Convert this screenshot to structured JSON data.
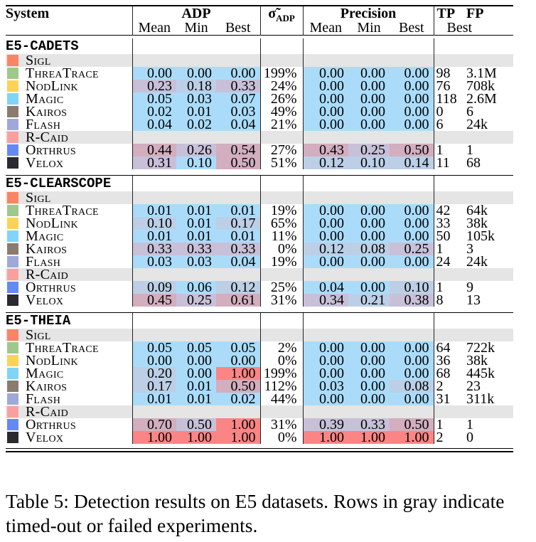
{
  "header": {
    "system": "System",
    "adp": "ADP",
    "sigma": "σ̃",
    "sigma_sub": "ADP",
    "precision": "Precision",
    "tp": "TP",
    "fp": "FP",
    "sub": [
      "Mean",
      "Min",
      "Best"
    ],
    "best": "Best"
  },
  "colors": {
    "gray_row": "#e5e5e5",
    "low": "#aadcfa",
    "midlow": "#bccfe6",
    "mid": "#c8c0d8",
    "midhigh": "#d2aebe",
    "high": "#fb8585"
  },
  "systems": [
    {
      "name": "Sigl",
      "color": "#fb8464"
    },
    {
      "name": "ThreaTrace",
      "color": "#a0c88c"
    },
    {
      "name": "NodLink",
      "color": "#fcd258"
    },
    {
      "name": "Magic",
      "color": "#80d4f8"
    },
    {
      "name": "Kairos",
      "color": "#8a7a70"
    },
    {
      "name": "Flash",
      "color": "#a0a8d8"
    },
    {
      "name": "R-Caid",
      "color": "#f8a0a0"
    },
    {
      "name": "Orthrus",
      "color": "#6488f4"
    },
    {
      "name": "Velox",
      "color": "#2a2a30"
    }
  ],
  "sections": [
    {
      "name": "E5-CADETS",
      "rows": [
        {
          "sys": 0,
          "gray": true
        },
        {
          "sys": 1,
          "adp": [
            "0.00",
            "0.00",
            "0.00"
          ],
          "adp_c": [
            "low",
            "low",
            "low"
          ],
          "sigma": "199%",
          "prec": [
            "0.00",
            "0.00",
            "0.00"
          ],
          "prec_c": [
            "low",
            "low",
            "low"
          ],
          "tp": "98",
          "fp": "3.1M"
        },
        {
          "sys": 2,
          "adp": [
            "0.23",
            "0.18",
            "0.33"
          ],
          "adp_c": [
            "mid",
            "midlow",
            "mid"
          ],
          "sigma": "24%",
          "prec": [
            "0.00",
            "0.00",
            "0.00"
          ],
          "prec_c": [
            "low",
            "low",
            "low"
          ],
          "tp": "76",
          "fp": "708k"
        },
        {
          "sys": 3,
          "adp": [
            "0.05",
            "0.03",
            "0.07"
          ],
          "adp_c": [
            "low",
            "low",
            "low"
          ],
          "sigma": "26%",
          "prec": [
            "0.00",
            "0.00",
            "0.00"
          ],
          "prec_c": [
            "low",
            "low",
            "low"
          ],
          "tp": "118",
          "fp": "2.6M"
        },
        {
          "sys": 4,
          "adp": [
            "0.02",
            "0.01",
            "0.03"
          ],
          "adp_c": [
            "low",
            "low",
            "low"
          ],
          "sigma": "49%",
          "prec": [
            "0.00",
            "0.00",
            "0.00"
          ],
          "prec_c": [
            "low",
            "low",
            "low"
          ],
          "tp": "0",
          "fp": "6"
        },
        {
          "sys": 5,
          "adp": [
            "0.04",
            "0.02",
            "0.04"
          ],
          "adp_c": [
            "low",
            "low",
            "low"
          ],
          "sigma": "21%",
          "prec": [
            "0.00",
            "0.00",
            "0.00"
          ],
          "prec_c": [
            "low",
            "low",
            "low"
          ],
          "tp": "6",
          "fp": "24k"
        },
        {
          "sys": 6,
          "gray": true
        },
        {
          "sys": 7,
          "adp": [
            "0.44",
            "0.26",
            "0.54"
          ],
          "adp_c": [
            "midhigh",
            "mid",
            "midhigh"
          ],
          "sigma": "27%",
          "prec": [
            "0.43",
            "0.25",
            "0.50"
          ],
          "prec_c": [
            "midhigh",
            "mid",
            "midhigh"
          ],
          "tp": "1",
          "fp": "1"
        },
        {
          "sys": 8,
          "adp": [
            "0.31",
            "0.10",
            "0.50"
          ],
          "adp_c": [
            "mid",
            "low",
            "midhigh"
          ],
          "sigma": "51%",
          "prec": [
            "0.12",
            "0.10",
            "0.14"
          ],
          "prec_c": [
            "midlow",
            "midlow",
            "midlow"
          ],
          "tp": "11",
          "fp": "68"
        }
      ]
    },
    {
      "name": "E5-CLEARSCOPE",
      "rows": [
        {
          "sys": 0,
          "gray": true
        },
        {
          "sys": 1,
          "adp": [
            "0.01",
            "0.01",
            "0.01"
          ],
          "adp_c": [
            "low",
            "low",
            "low"
          ],
          "sigma": "19%",
          "prec": [
            "0.00",
            "0.00",
            "0.00"
          ],
          "prec_c": [
            "low",
            "low",
            "low"
          ],
          "tp": "42",
          "fp": "64k"
        },
        {
          "sys": 2,
          "adp": [
            "0.10",
            "0.01",
            "0.17"
          ],
          "adp_c": [
            "midlow",
            "low",
            "midlow"
          ],
          "sigma": "65%",
          "prec": [
            "0.00",
            "0.00",
            "0.00"
          ],
          "prec_c": [
            "low",
            "low",
            "low"
          ],
          "tp": "33",
          "fp": "38k"
        },
        {
          "sys": 3,
          "adp": [
            "0.01",
            "0.01",
            "0.01"
          ],
          "adp_c": [
            "low",
            "low",
            "low"
          ],
          "sigma": "11%",
          "prec": [
            "0.00",
            "0.00",
            "0.00"
          ],
          "prec_c": [
            "low",
            "low",
            "low"
          ],
          "tp": "50",
          "fp": "105k"
        },
        {
          "sys": 4,
          "adp": [
            "0.33",
            "0.33",
            "0.33"
          ],
          "adp_c": [
            "mid",
            "mid",
            "mid"
          ],
          "sigma": "0%",
          "prec": [
            "0.12",
            "0.08",
            "0.25"
          ],
          "prec_c": [
            "midlow",
            "midlow",
            "mid"
          ],
          "tp": "1",
          "fp": "3"
        },
        {
          "sys": 5,
          "adp": [
            "0.03",
            "0.03",
            "0.04"
          ],
          "adp_c": [
            "low",
            "low",
            "low"
          ],
          "sigma": "19%",
          "prec": [
            "0.00",
            "0.00",
            "0.00"
          ],
          "prec_c": [
            "low",
            "low",
            "low"
          ],
          "tp": "24",
          "fp": "24k"
        },
        {
          "sys": 6,
          "gray": true
        },
        {
          "sys": 7,
          "adp": [
            "0.09",
            "0.06",
            "0.12"
          ],
          "adp_c": [
            "midlow",
            "low",
            "midlow"
          ],
          "sigma": "25%",
          "prec": [
            "0.04",
            "0.00",
            "0.10"
          ],
          "prec_c": [
            "low",
            "low",
            "midlow"
          ],
          "tp": "1",
          "fp": "9"
        },
        {
          "sys": 8,
          "adp": [
            "0.45",
            "0.25",
            "0.61"
          ],
          "adp_c": [
            "midhigh",
            "mid",
            "midhigh"
          ],
          "sigma": "31%",
          "prec": [
            "0.34",
            "0.21",
            "0.38"
          ],
          "prec_c": [
            "mid",
            "midlow",
            "mid"
          ],
          "tp": "8",
          "fp": "13"
        }
      ]
    },
    {
      "name": "E5-THEIA",
      "rows": [
        {
          "sys": 0,
          "gray": true
        },
        {
          "sys": 1,
          "adp": [
            "0.05",
            "0.05",
            "0.05"
          ],
          "adp_c": [
            "low",
            "low",
            "low"
          ],
          "sigma": "2%",
          "prec": [
            "0.00",
            "0.00",
            "0.00"
          ],
          "prec_c": [
            "low",
            "low",
            "low"
          ],
          "tp": "64",
          "fp": "722k"
        },
        {
          "sys": 2,
          "adp": [
            "0.00",
            "0.00",
            "0.00"
          ],
          "adp_c": [
            "low",
            "low",
            "low"
          ],
          "sigma": "0%",
          "prec": [
            "0.00",
            "0.00",
            "0.00"
          ],
          "prec_c": [
            "low",
            "low",
            "low"
          ],
          "tp": "36",
          "fp": "38k"
        },
        {
          "sys": 3,
          "adp": [
            "0.20",
            "0.00",
            "1.00"
          ],
          "adp_c": [
            "midlow",
            "low",
            "high"
          ],
          "sigma": "199%",
          "prec": [
            "0.00",
            "0.00",
            "0.00"
          ],
          "prec_c": [
            "low",
            "low",
            "low"
          ],
          "tp": "68",
          "fp": "445k"
        },
        {
          "sys": 4,
          "adp": [
            "0.17",
            "0.01",
            "0.50"
          ],
          "adp_c": [
            "midlow",
            "low",
            "midhigh"
          ],
          "sigma": "112%",
          "prec": [
            "0.03",
            "0.00",
            "0.08"
          ],
          "prec_c": [
            "low",
            "low",
            "midlow"
          ],
          "tp": "2",
          "fp": "23"
        },
        {
          "sys": 5,
          "adp": [
            "0.01",
            "0.01",
            "0.02"
          ],
          "adp_c": [
            "low",
            "low",
            "low"
          ],
          "sigma": "44%",
          "prec": [
            "0.00",
            "0.00",
            "0.00"
          ],
          "prec_c": [
            "low",
            "low",
            "low"
          ],
          "tp": "31",
          "fp": "311k"
        },
        {
          "sys": 6,
          "gray": true
        },
        {
          "sys": 7,
          "adp": [
            "0.70",
            "0.50",
            "1.00"
          ],
          "adp_c": [
            "midhigh",
            "mid",
            "high"
          ],
          "sigma": "31%",
          "prec": [
            "0.39",
            "0.33",
            "0.50"
          ],
          "prec_c": [
            "mid",
            "mid",
            "midhigh"
          ],
          "tp": "1",
          "fp": "1"
        },
        {
          "sys": 8,
          "adp": [
            "1.00",
            "1.00",
            "1.00"
          ],
          "adp_c": [
            "high",
            "high",
            "high"
          ],
          "sigma": "0%",
          "prec": [
            "1.00",
            "1.00",
            "1.00"
          ],
          "prec_c": [
            "high",
            "high",
            "high"
          ],
          "tp": "2",
          "fp": "0"
        }
      ]
    }
  ],
  "caption": "Table 5: Detection results on E5 datasets. Rows in gray indicate timed-out or failed experiments."
}
